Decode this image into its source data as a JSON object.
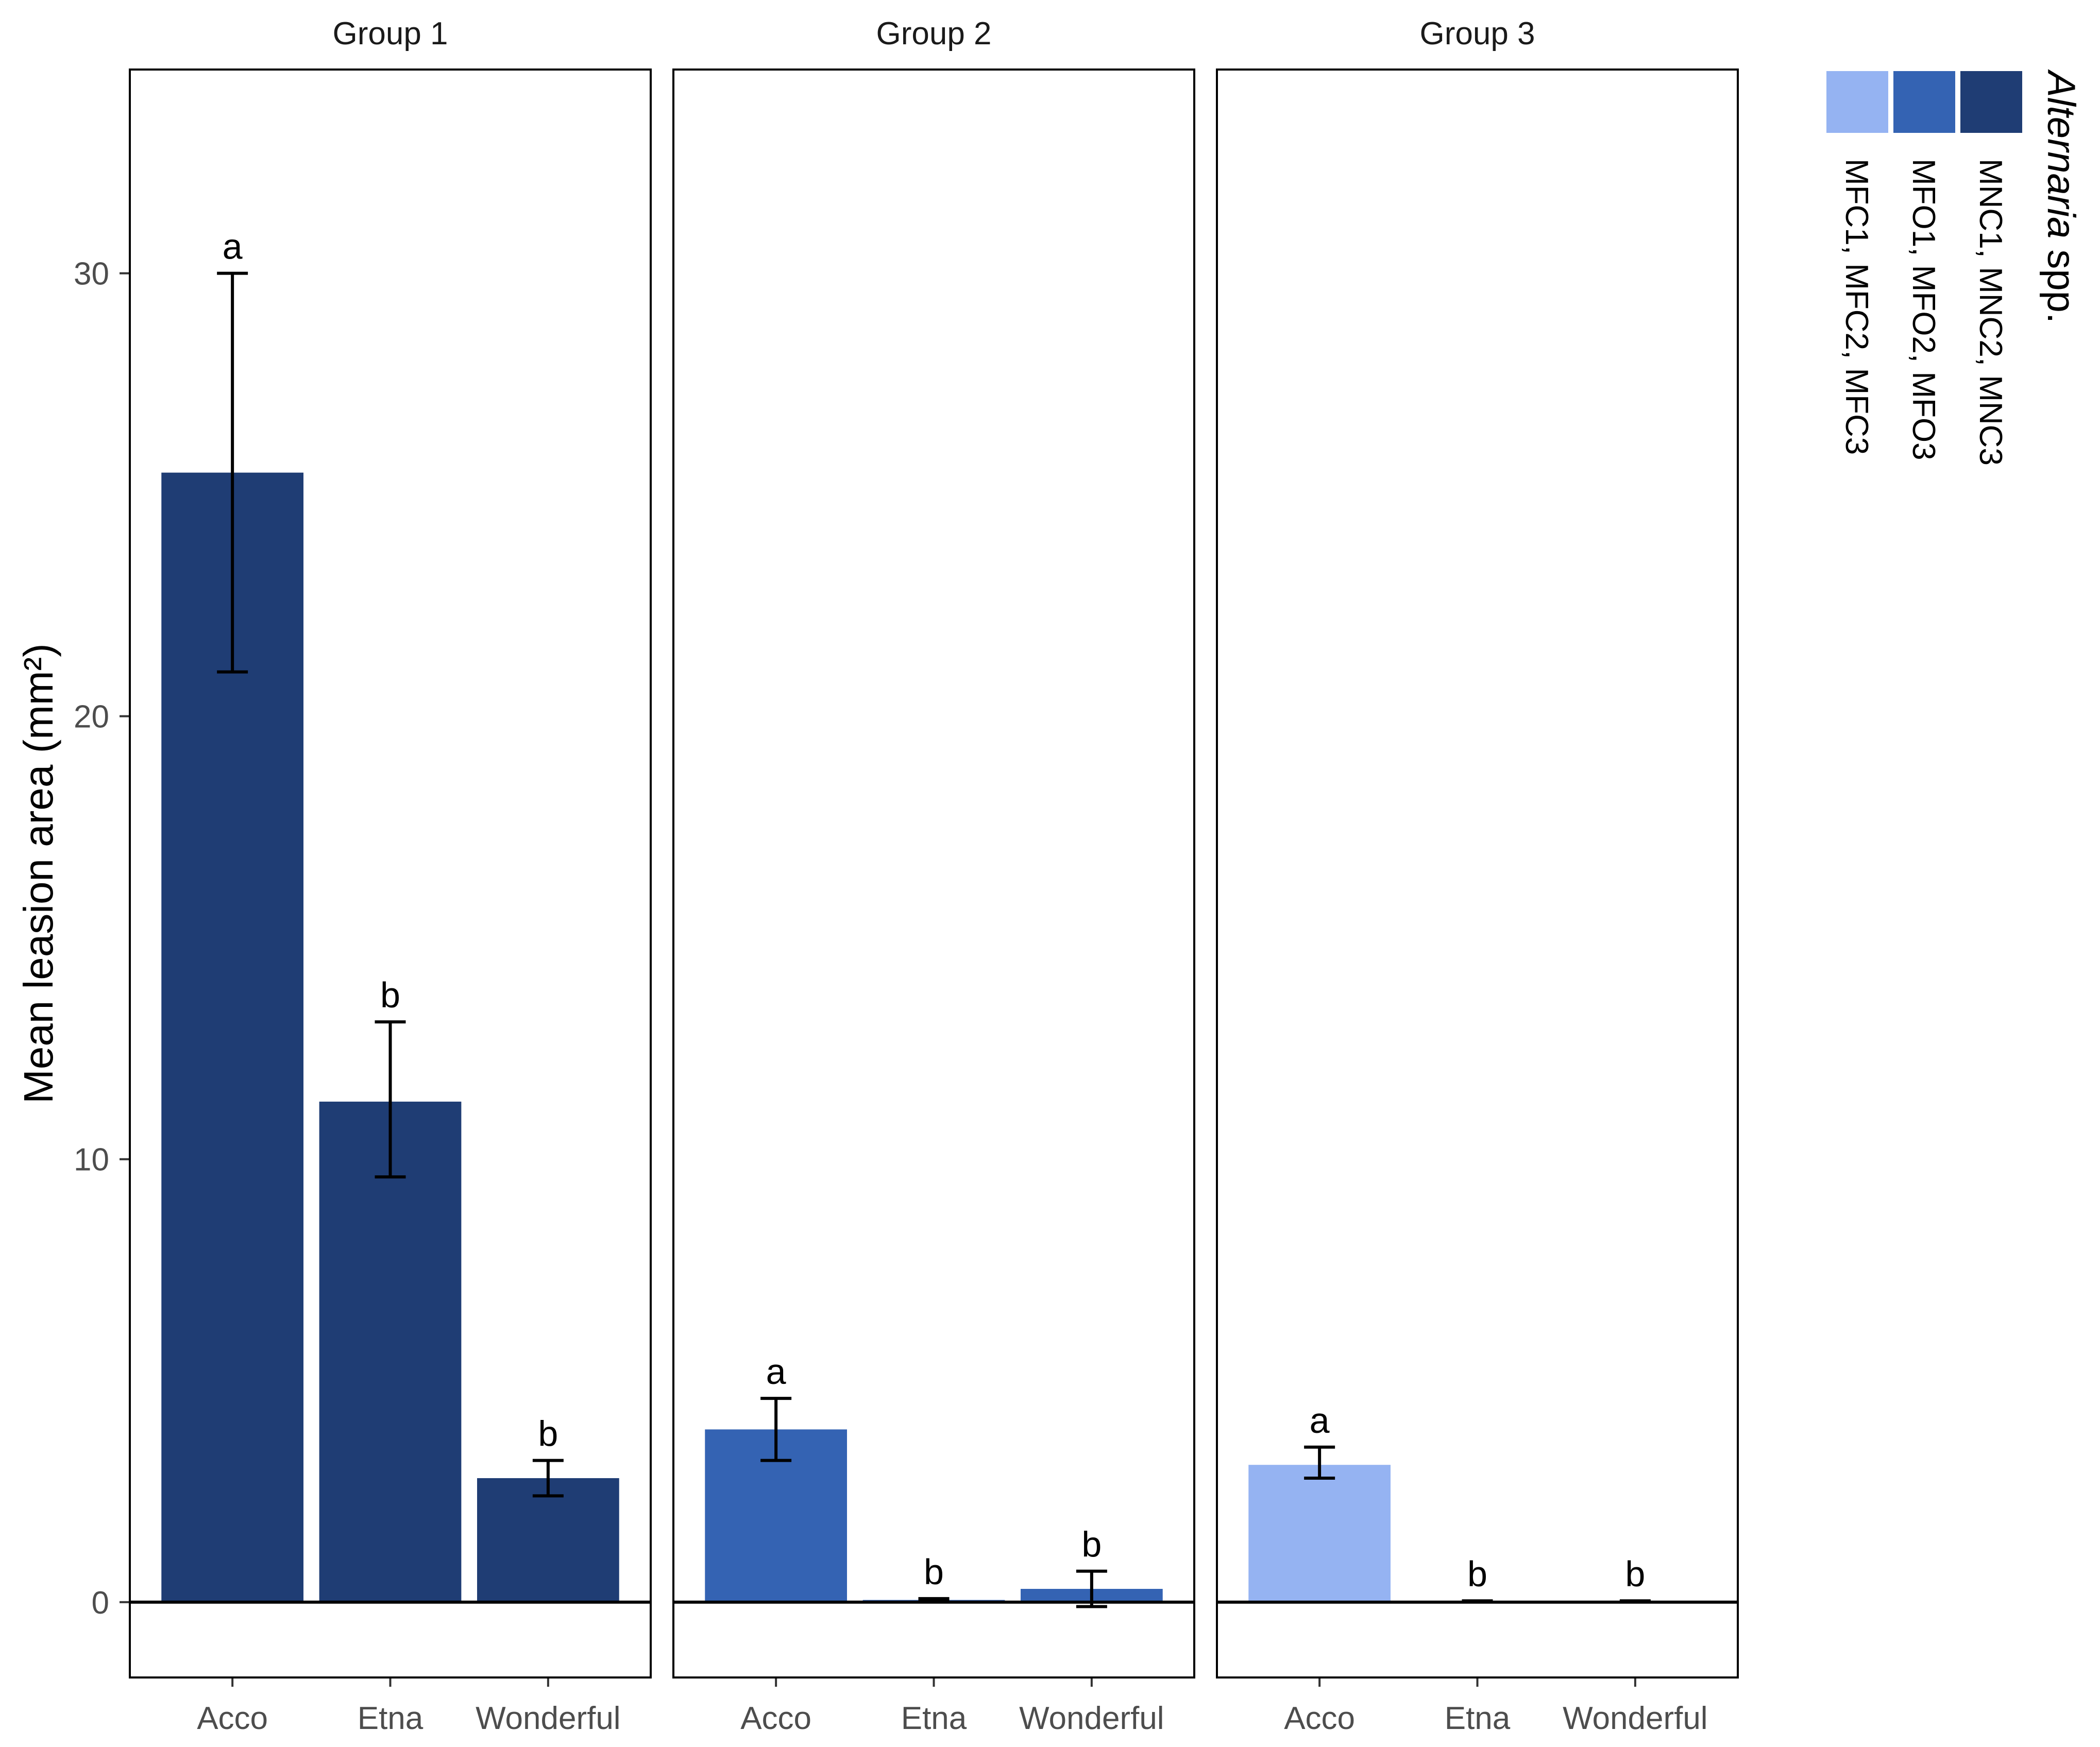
{
  "chart_data": {
    "type": "bar",
    "ylabel": "Mean leasion  area (mm²)",
    "ylim": [
      -1.7,
      34.6
    ],
    "yticks": [
      0,
      10,
      20,
      30
    ],
    "categories": [
      "Acco",
      "Etna",
      "Wonderful"
    ],
    "panels": [
      {
        "label": "Group 1",
        "values": [
          25.5,
          11.3,
          2.8
        ],
        "error_low": [
          21.0,
          9.6,
          2.4
        ],
        "error_high": [
          30.0,
          13.1,
          3.2
        ],
        "letters": [
          "a",
          "b",
          "b"
        ],
        "color": "#1f3d74"
      },
      {
        "label": "Group 2",
        "values": [
          3.9,
          0.05,
          0.3
        ],
        "error_low": [
          3.2,
          0.02,
          -0.1
        ],
        "error_high": [
          4.6,
          0.08,
          0.7
        ],
        "letters": [
          "a",
          "b",
          "b"
        ],
        "color": "#3463b3"
      },
      {
        "label": "Group 3",
        "values": [
          3.1,
          0.02,
          0.02
        ],
        "error_low": [
          2.8,
          0.01,
          0.01
        ],
        "error_high": [
          3.5,
          0.03,
          0.03
        ],
        "letters": [
          "a",
          "b",
          "b"
        ],
        "color": "#95b3f2"
      }
    ],
    "legend": {
      "title_italic": "Alternaria",
      "title_rest": " spp.",
      "placement": "right",
      "items": [
        {
          "label": "MFC1, MFC2, MFC3",
          "color": "#95b3f2"
        },
        {
          "label": "MFO1, MFO2, MFO3",
          "color": "#3463b3"
        },
        {
          "label": "MNC1, MNC2, MNC3",
          "color": "#1f3d74"
        }
      ]
    }
  }
}
